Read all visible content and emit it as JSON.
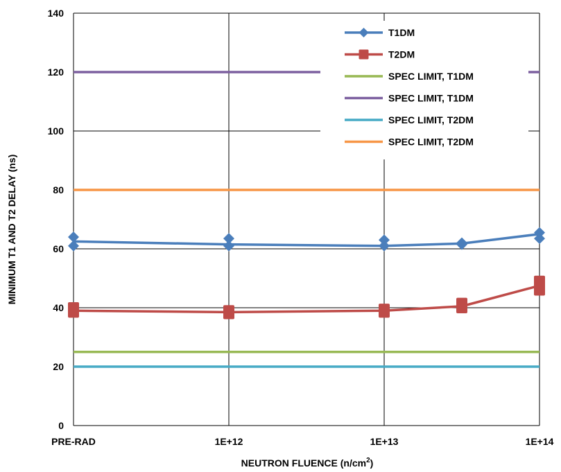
{
  "chart_data": {
    "type": "line",
    "xlabel": "NEUTRON FLUENCE (n/cm",
    "xlabel_sup": "2",
    "xlabel_end": ")",
    "ylabel": "MINIMUM T1 AND T2 DELAY (ns)",
    "ylim": [
      0,
      140
    ],
    "yticks": [
      "0",
      "20",
      "40",
      "60",
      "80",
      "100",
      "120",
      "140"
    ],
    "xticks": [
      "PRE-RAD",
      "1E+12",
      "1E+13",
      "1E+14"
    ],
    "grid": true,
    "legend_position": "top-right",
    "x_positions": [
      0,
      1,
      2,
      2.5,
      3
    ],
    "series": [
      {
        "name": "T1DM",
        "color": "#4a7ebb",
        "marker": "diamond",
        "points": [
          {
            "x": 0,
            "y": [
              64,
              61
            ]
          },
          {
            "x": 1,
            "y": [
              63.5,
              61
            ]
          },
          {
            "x": 2,
            "y": [
              63,
              61
            ]
          },
          {
            "x": 2.5,
            "y": [
              62,
              61.5
            ]
          },
          {
            "x": 3,
            "y": [
              65.5,
              63.5
            ]
          }
        ],
        "line": [
          62.5,
          61.5,
          61,
          61.8,
          65
        ]
      },
      {
        "name": "T2DM",
        "color": "#be4b48",
        "marker": "square",
        "points": [
          {
            "x": 0,
            "y": [
              40,
              38.5
            ]
          },
          {
            "x": 1,
            "y": [
              39,
              38
            ]
          },
          {
            "x": 2,
            "y": [
              39.5,
              38.5
            ]
          },
          {
            "x": 2.5,
            "y": [
              41.5,
              40
            ]
          },
          {
            "x": 3,
            "y": [
              49,
              46
            ]
          }
        ],
        "line": [
          39,
          38.5,
          39,
          40.5,
          47.5
        ]
      },
      {
        "name": "SPEC LIMIT, T1DM",
        "color": "#98b954",
        "constant": 25
      },
      {
        "name": "SPEC LIMIT, T1DM",
        "color": "#7d60a0",
        "constant": 120
      },
      {
        "name": "SPEC LIMIT, T2DM",
        "color": "#46aac5",
        "constant": 20
      },
      {
        "name": "SPEC LIMIT, T2DM",
        "color": "#f79646",
        "constant": 80
      }
    ]
  }
}
